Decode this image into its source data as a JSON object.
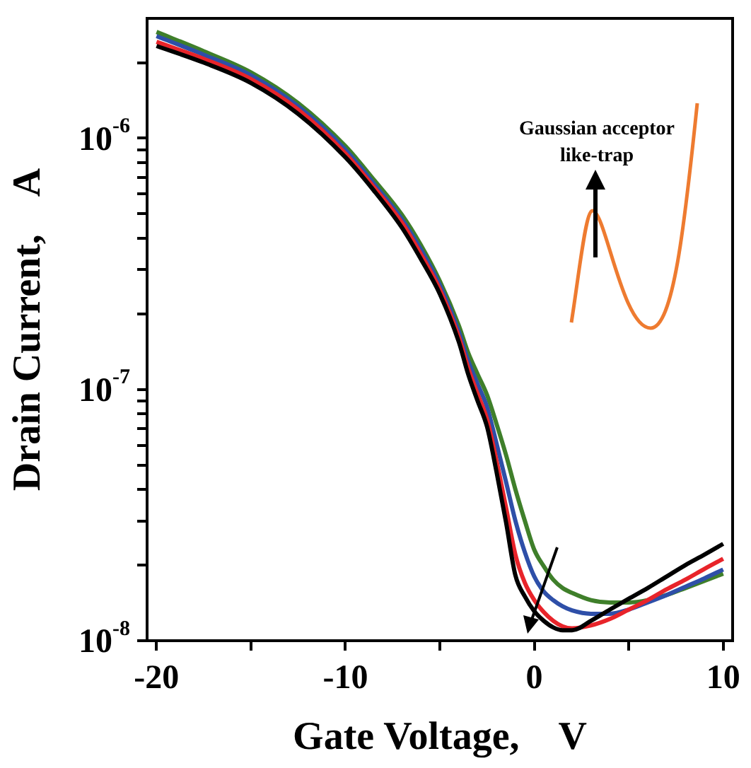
{
  "chart_data": {
    "type": "line",
    "xlabel": "Gate Voltage,    V",
    "ylabel": "Drain Current,    A",
    "log": "y",
    "grid": false,
    "legend": false,
    "marker": "none",
    "line_style": "solid",
    "xlim": [
      -20.5,
      10.5
    ],
    "xticks": [
      -20,
      {
        "value": -15,
        "label": null
      },
      -10,
      {
        "value": -5,
        "label": null
      },
      0,
      {
        "value": 5,
        "label": null
      },
      10
    ],
    "ylim": [
      1e-08,
      3e-06
    ],
    "yticks": [
      {
        "value": 1e-08,
        "label": "10$^{-8}$"
      },
      {
        "value": 2e-08,
        "label": null
      },
      {
        "value": 3e-08,
        "label": null
      },
      {
        "value": 4e-08,
        "label": null
      },
      {
        "value": 5e-08,
        "label": null
      },
      {
        "value": 6e-08,
        "label": null
      },
      {
        "value": 7e-08,
        "label": null
      },
      {
        "value": 8e-08,
        "label": null
      },
      {
        "value": 9e-08,
        "label": null
      },
      {
        "value": 1e-07,
        "label": "10$^{-7}$"
      },
      {
        "value": 2e-07,
        "label": null
      },
      {
        "value": 3e-07,
        "label": null
      },
      {
        "value": 4e-07,
        "label": null
      },
      {
        "value": 5e-07,
        "label": null
      },
      {
        "value": 6e-07,
        "label": null
      },
      {
        "value": 7e-07,
        "label": null
      },
      {
        "value": 8e-07,
        "label": null
      },
      {
        "value": 9e-07,
        "label": null
      },
      {
        "value": 1e-06,
        "label": "10$^{-6}$"
      },
      {
        "value": 2e-06,
        "label": null
      }
    ],
    "x": [
      -20,
      -17.5,
      -15,
      -12.5,
      -10,
      -8.5,
      -7,
      -6,
      -5,
      -4,
      -3.5,
      -3,
      -2.5,
      -2,
      -1.5,
      -1,
      -0.5,
      0,
      0.5,
      1,
      1.5,
      2,
      3,
      4,
      5,
      6,
      7,
      8,
      9,
      10
    ],
    "annotations": [
      "Gaussian acceptor like-trap"
    ],
    "series": [
      {
        "color": "#000000",
        "values": [
          2.33e-06,
          2e-06,
          1.66e-06,
          1.25e-06,
          8.4e-07,
          6.2e-07,
          4.4e-07,
          3.3e-07,
          2.4e-07,
          1.55e-07,
          1.15e-07,
          9e-08,
          7.1e-08,
          4.7e-08,
          2.97e-08,
          1.82e-08,
          1.5e-08,
          1.31e-08,
          1.2e-08,
          1.13e-08,
          1.1e-08,
          1.1e-08,
          1.2e-08,
          1.33e-08,
          1.47e-08,
          1.62e-08,
          1.8e-08,
          2e-08,
          2.2e-08,
          2.43e-08
        ]
      },
      {
        "color": "#e8242a",
        "values": [
          2.42e-06,
          2.07e-06,
          1.72e-06,
          1.3e-06,
          8.7e-07,
          6.4e-07,
          4.6e-07,
          3.45e-07,
          2.5e-07,
          1.62e-07,
          1.22e-07,
          9.6e-08,
          7.6e-08,
          5.2e-08,
          3.4e-08,
          2.2e-08,
          1.7e-08,
          1.45e-08,
          1.3e-08,
          1.2e-08,
          1.14e-08,
          1.12e-08,
          1.15e-08,
          1.22e-08,
          1.33e-08,
          1.45e-08,
          1.6e-08,
          1.75e-08,
          1.93e-08,
          2.12e-08
        ]
      },
      {
        "color": "#2e4fa8",
        "values": [
          2.55e-06,
          2.15e-06,
          1.78e-06,
          1.34e-06,
          9e-07,
          6.6e-07,
          4.75e-07,
          3.6e-07,
          2.6e-07,
          1.7e-07,
          1.3e-07,
          1.05e-07,
          8.5e-08,
          6.1e-08,
          4.3e-08,
          3e-08,
          2.25e-08,
          1.8e-08,
          1.57e-08,
          1.45e-08,
          1.37e-08,
          1.32e-08,
          1.28e-08,
          1.28e-08,
          1.33e-08,
          1.42e-08,
          1.52e-08,
          1.64e-08,
          1.77e-08,
          1.92e-08
        ]
      },
      {
        "color": "#3f7f2a",
        "values": [
          2.65e-06,
          2.22e-06,
          1.83e-06,
          1.38e-06,
          9.3e-07,
          6.85e-07,
          4.95e-07,
          3.75e-07,
          2.7e-07,
          1.8e-07,
          1.4e-07,
          1.15e-07,
          9.5e-08,
          7.3e-08,
          5.5e-08,
          4e-08,
          3e-08,
          2.3e-08,
          1.98e-08,
          1.75e-08,
          1.62e-08,
          1.55e-08,
          1.45e-08,
          1.42e-08,
          1.42e-08,
          1.45e-08,
          1.52e-08,
          1.62e-08,
          1.73e-08,
          1.85e-08
        ]
      }
    ]
  }
}
